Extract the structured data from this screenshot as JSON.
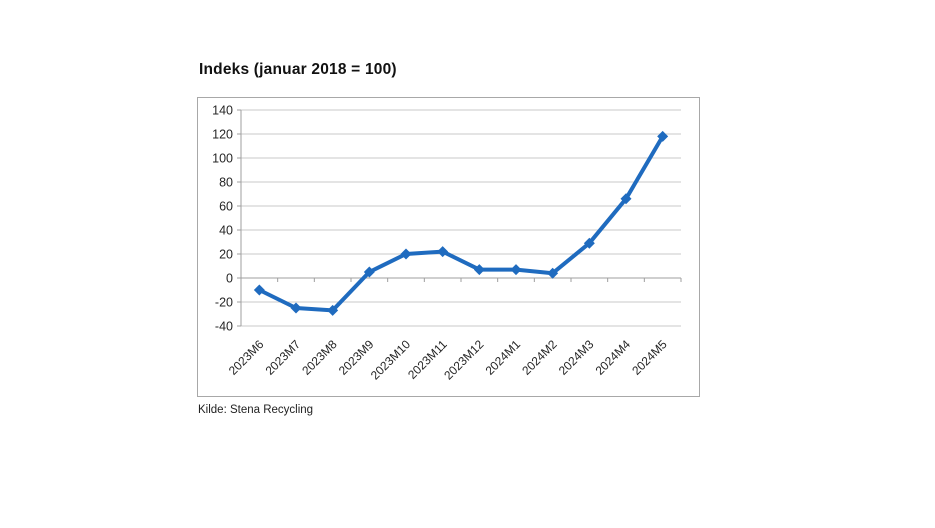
{
  "chart_data": {
    "type": "line",
    "title": "Indeks (januar 2018 = 100)",
    "source": "Kilde: Stena Recycling",
    "categories": [
      "2023M6",
      "2023M7",
      "2023M8",
      "2023M9",
      "2023M10",
      "2023M11",
      "2023M12",
      "2024M1",
      "2024M2",
      "2024M3",
      "2024M4",
      "2024M5"
    ],
    "series": [
      {
        "name": "Indeks",
        "values": [
          -10,
          -25,
          -27,
          5,
          20,
          22,
          7,
          7,
          4,
          29,
          66,
          118
        ]
      }
    ],
    "ylim": [
      -40,
      140
    ],
    "ytick_step": 20,
    "yticks": [
      140,
      120,
      100,
      80,
      60,
      40,
      20,
      0,
      -20,
      -40
    ],
    "grid": true,
    "legend": "none",
    "marker": "diamond",
    "axis_crosses_at": 0,
    "colors": {
      "line": "#1f6bbf",
      "marker": "#1f6bbf",
      "gridline": "#c9c9c9",
      "axis": "#9f9f9f",
      "tick": "#9f9f9f",
      "label_text": "#262626",
      "frame_border": "#a8a8a8"
    }
  }
}
